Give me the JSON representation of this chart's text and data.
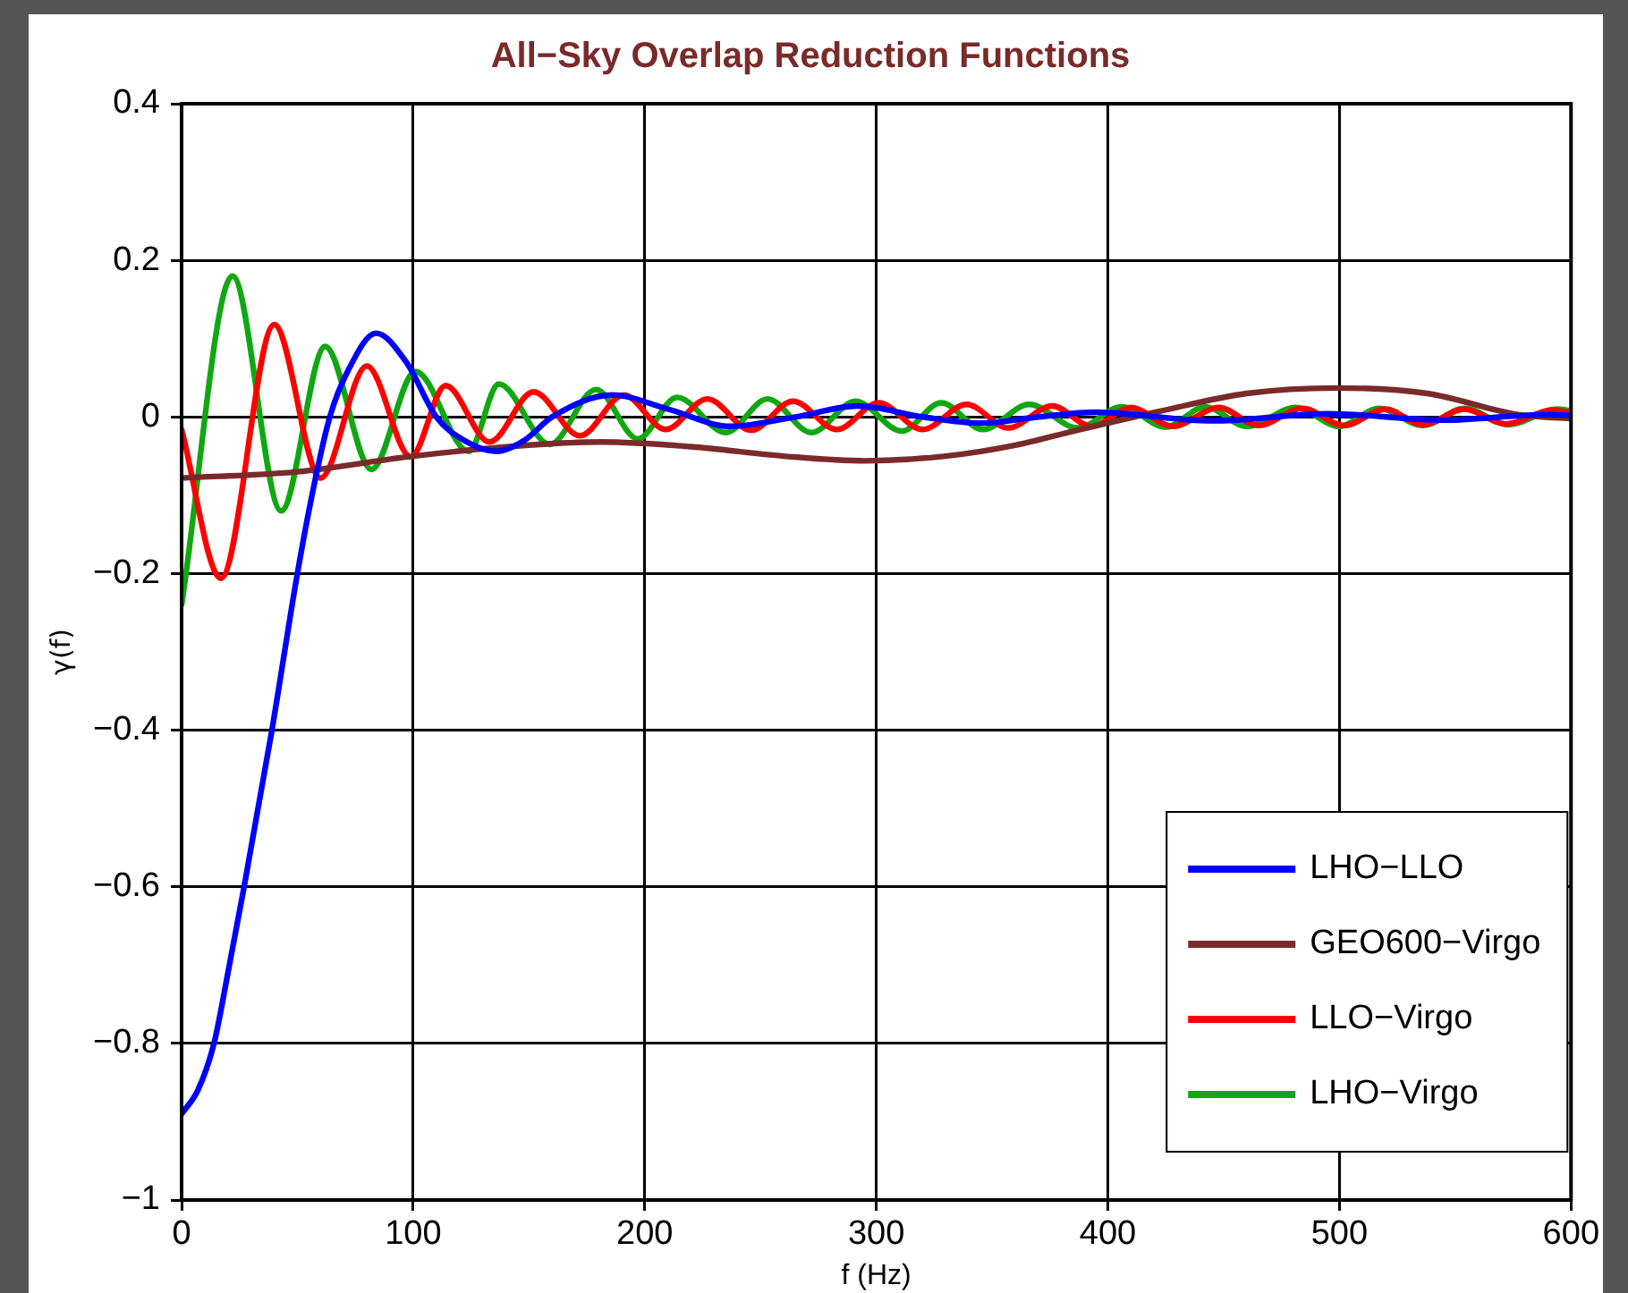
{
  "chart_data": {
    "type": "line",
    "title": "All−Sky Overlap Reduction Functions",
    "xlabel": "f (Hz)",
    "ylabel": "γ(f)",
    "xlim": [
      0,
      600
    ],
    "xticks": [
      0,
      100,
      200,
      300,
      400,
      500,
      600
    ],
    "ylim": [
      -1,
      0.4
    ],
    "yticks": [
      {
        "value": -1,
        "label": "−1"
      },
      {
        "value": -0.8,
        "label": "−0.8"
      },
      {
        "value": -0.6,
        "label": "−0.6"
      },
      {
        "value": -0.4,
        "label": "−0.4"
      },
      {
        "value": -0.2,
        "label": "−0.2"
      },
      0,
      0.2,
      0.4
    ],
    "grid": true,
    "legend": "bottom right",
    "marker": "none",
    "line_style": "solid",
    "series": [
      {
        "name": "LHO−LLO",
        "color": "#0000ff",
        "x": [
          0,
          7,
          14,
          20,
          27,
          39,
          50,
          57,
          64,
          72,
          84,
          97,
          110,
          122,
          136,
          148,
          160,
          186,
          210,
          237,
          265,
          292,
          320,
          345,
          370,
          395,
          445,
          495,
          545,
          590,
          600
        ],
        "values": [
          -0.89,
          -0.86,
          -0.8,
          -0.71,
          -0.6,
          -0.4,
          -0.2,
          -0.09,
          0,
          0.06,
          0.107,
          0.07,
          0,
          -0.03,
          -0.044,
          -0.03,
          0,
          0.028,
          0.01,
          -0.012,
          0,
          0.014,
          0,
          -0.008,
          0,
          0.006,
          -0.005,
          0.004,
          -0.004,
          0.003,
          0.002
        ]
      },
      {
        "name": "GEO600−Virgo",
        "color": "#7a2a2a",
        "x": [
          0,
          50,
          100,
          150,
          181,
          220,
          260,
          295,
          330,
          360,
          388,
          422,
          460,
          499,
          538,
          577,
          600
        ],
        "values": [
          -0.078,
          -0.07,
          -0.05,
          -0.036,
          -0.032,
          -0.038,
          -0.05,
          -0.056,
          -0.05,
          -0.036,
          -0.016,
          0.007,
          0.03,
          0.037,
          0.03,
          0.003,
          -0.002
        ]
      },
      {
        "name": "LLO−Virgo",
        "color": "#ff0000",
        "x": [
          0,
          17,
          40,
          60,
          80,
          99,
          114,
          133,
          152,
          172,
          191,
          209,
          227,
          246,
          264,
          283,
          301,
          320,
          339,
          357,
          376,
          393,
          410,
          428,
          448,
          465,
          484,
          502,
          520,
          536,
          554,
          572,
          592,
          600
        ],
        "values": [
          -0.016,
          -0.206,
          0.118,
          -0.078,
          0.065,
          -0.051,
          0.04,
          -0.032,
          0.032,
          -0.024,
          0.028,
          -0.016,
          0.023,
          -0.017,
          0.02,
          -0.016,
          0.018,
          -0.016,
          0.016,
          -0.014,
          0.014,
          -0.012,
          0.012,
          -0.012,
          0.012,
          -0.011,
          0.011,
          -0.011,
          0.01,
          -0.01,
          0.01,
          -0.009,
          0.009,
          0.005
        ]
      },
      {
        "name": "LHO−Virgo",
        "color": "#10a810",
        "x": [
          0,
          22,
          43,
          62,
          82,
          101,
          124,
          137,
          159,
          179,
          197,
          214,
          235,
          253,
          272,
          291,
          311,
          328,
          346,
          366,
          387,
          406,
          425,
          442,
          460,
          481,
          500,
          517,
          536,
          554,
          573,
          594,
          600
        ],
        "values": [
          -0.24,
          0.18,
          -0.12,
          0.09,
          -0.067,
          0.058,
          -0.044,
          0.042,
          -0.035,
          0.035,
          -0.028,
          0.025,
          -0.02,
          0.023,
          -0.02,
          0.02,
          -0.018,
          0.018,
          -0.016,
          0.016,
          -0.014,
          0.013,
          -0.013,
          0.013,
          -0.012,
          0.012,
          -0.012,
          0.011,
          -0.011,
          0.011,
          -0.01,
          0.01,
          0.008
        ]
      }
    ]
  }
}
